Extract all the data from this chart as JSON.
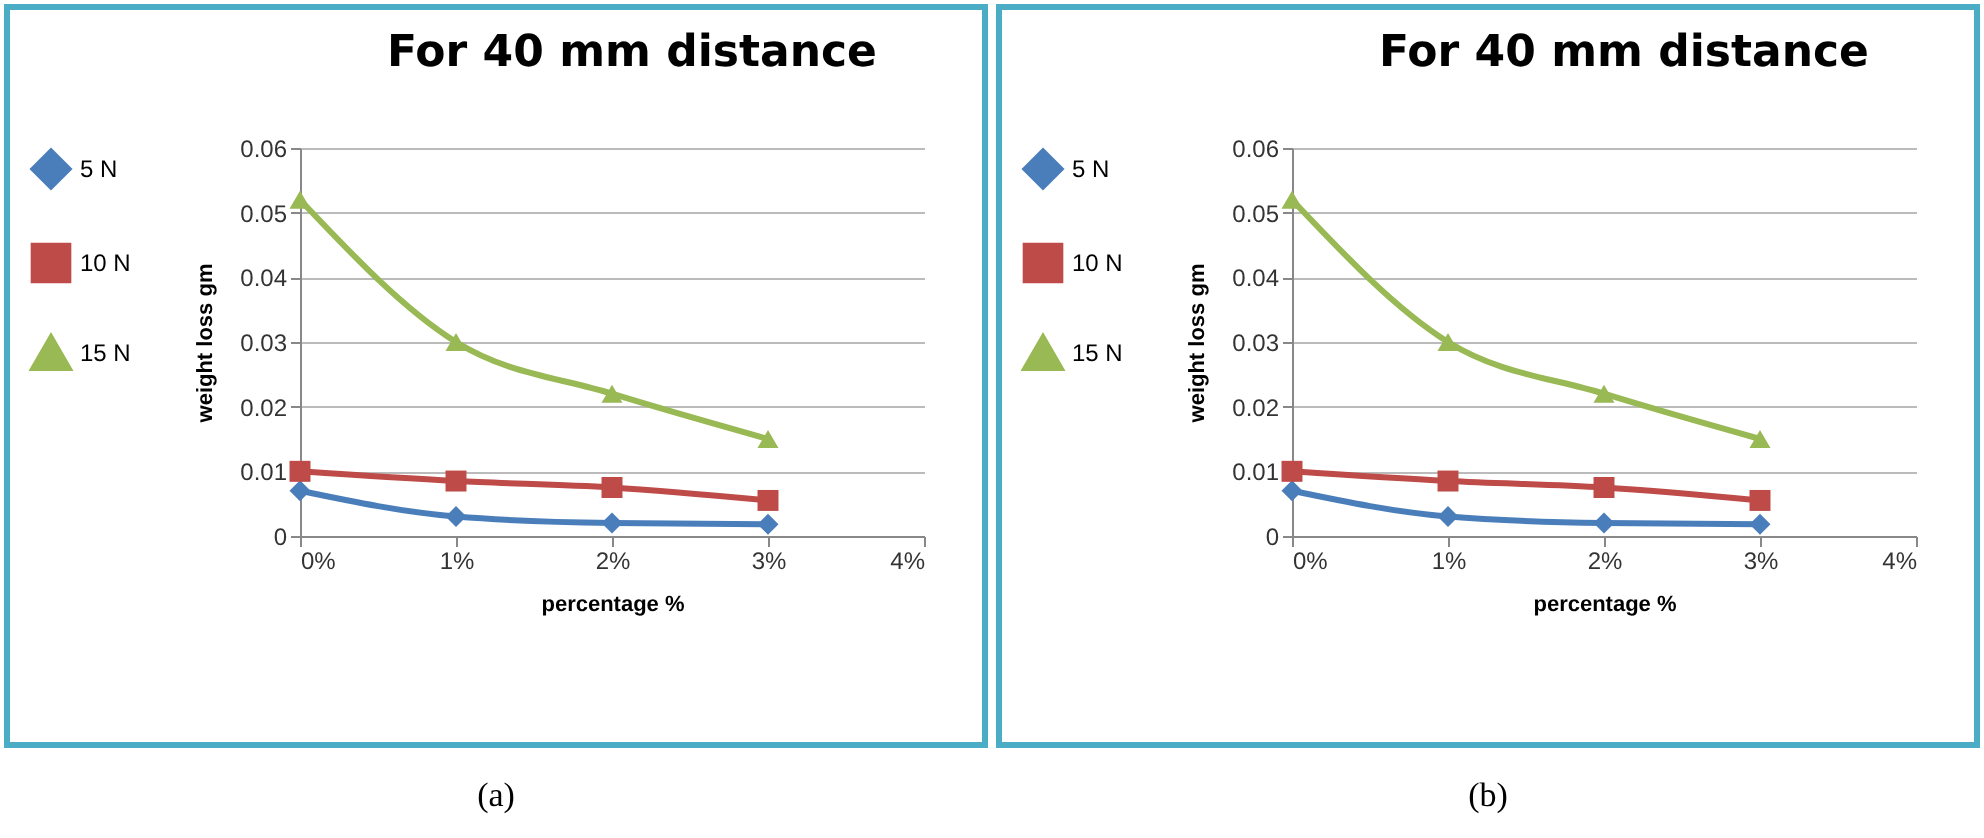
{
  "chart_data": [
    {
      "type": "line",
      "title": "For 40 mm distance",
      "xlabel": "percentage %",
      "ylabel": "weight loss gm",
      "x": [
        0,
        1,
        2,
        3
      ],
      "xlim": [
        0,
        4
      ],
      "xticks": [
        {
          "value": 0,
          "label": "0%"
        },
        {
          "value": 1,
          "label": "1%"
        },
        {
          "value": 2,
          "label": "2%"
        },
        {
          "value": 3,
          "label": "3%"
        },
        {
          "value": 4,
          "label": "4%"
        }
      ],
      "ylim": [
        0,
        0.06
      ],
      "yticks": [
        0,
        0.01,
        0.02,
        0.03,
        0.04,
        0.05,
        0.06
      ],
      "grid": "y",
      "legend": "left",
      "annotations": [
        "(a)"
      ],
      "series": [
        {
          "name": "5 N",
          "color": "#4a7ebb",
          "marker": "diamond",
          "values": [
            0.007,
            0.003,
            0.002,
            0.0018
          ]
        },
        {
          "name": "10 N",
          "color": "#be4b48",
          "marker": "square",
          "values": [
            0.01,
            0.0085,
            0.0075,
            0.0055
          ]
        },
        {
          "name": "15 N",
          "color": "#98b954",
          "marker": "triangle",
          "values": [
            0.052,
            0.03,
            0.022,
            0.015
          ]
        }
      ]
    },
    {
      "type": "line",
      "title": "For 40 mm distance",
      "xlabel": "percentage %",
      "ylabel": "weight loss gm",
      "x": [
        0,
        1,
        2,
        3
      ],
      "xlim": [
        0,
        4
      ],
      "xticks": [
        {
          "value": 0,
          "label": "0%"
        },
        {
          "value": 1,
          "label": "1%"
        },
        {
          "value": 2,
          "label": "2%"
        },
        {
          "value": 3,
          "label": "3%"
        },
        {
          "value": 4,
          "label": "4%"
        }
      ],
      "ylim": [
        0,
        0.06
      ],
      "yticks": [
        0,
        0.01,
        0.02,
        0.03,
        0.04,
        0.05,
        0.06
      ],
      "grid": "y",
      "legend": "left",
      "annotations": [
        "(b)"
      ],
      "series": [
        {
          "name": "5 N",
          "color": "#4a7ebb",
          "marker": "diamond",
          "values": [
            0.007,
            0.003,
            0.002,
            0.0018
          ]
        },
        {
          "name": "10 N",
          "color": "#be4b48",
          "marker": "square",
          "values": [
            0.01,
            0.0085,
            0.0075,
            0.0055
          ]
        },
        {
          "name": "15 N",
          "color": "#98b954",
          "marker": "triangle",
          "values": [
            0.052,
            0.03,
            0.022,
            0.015
          ]
        }
      ]
    }
  ]
}
